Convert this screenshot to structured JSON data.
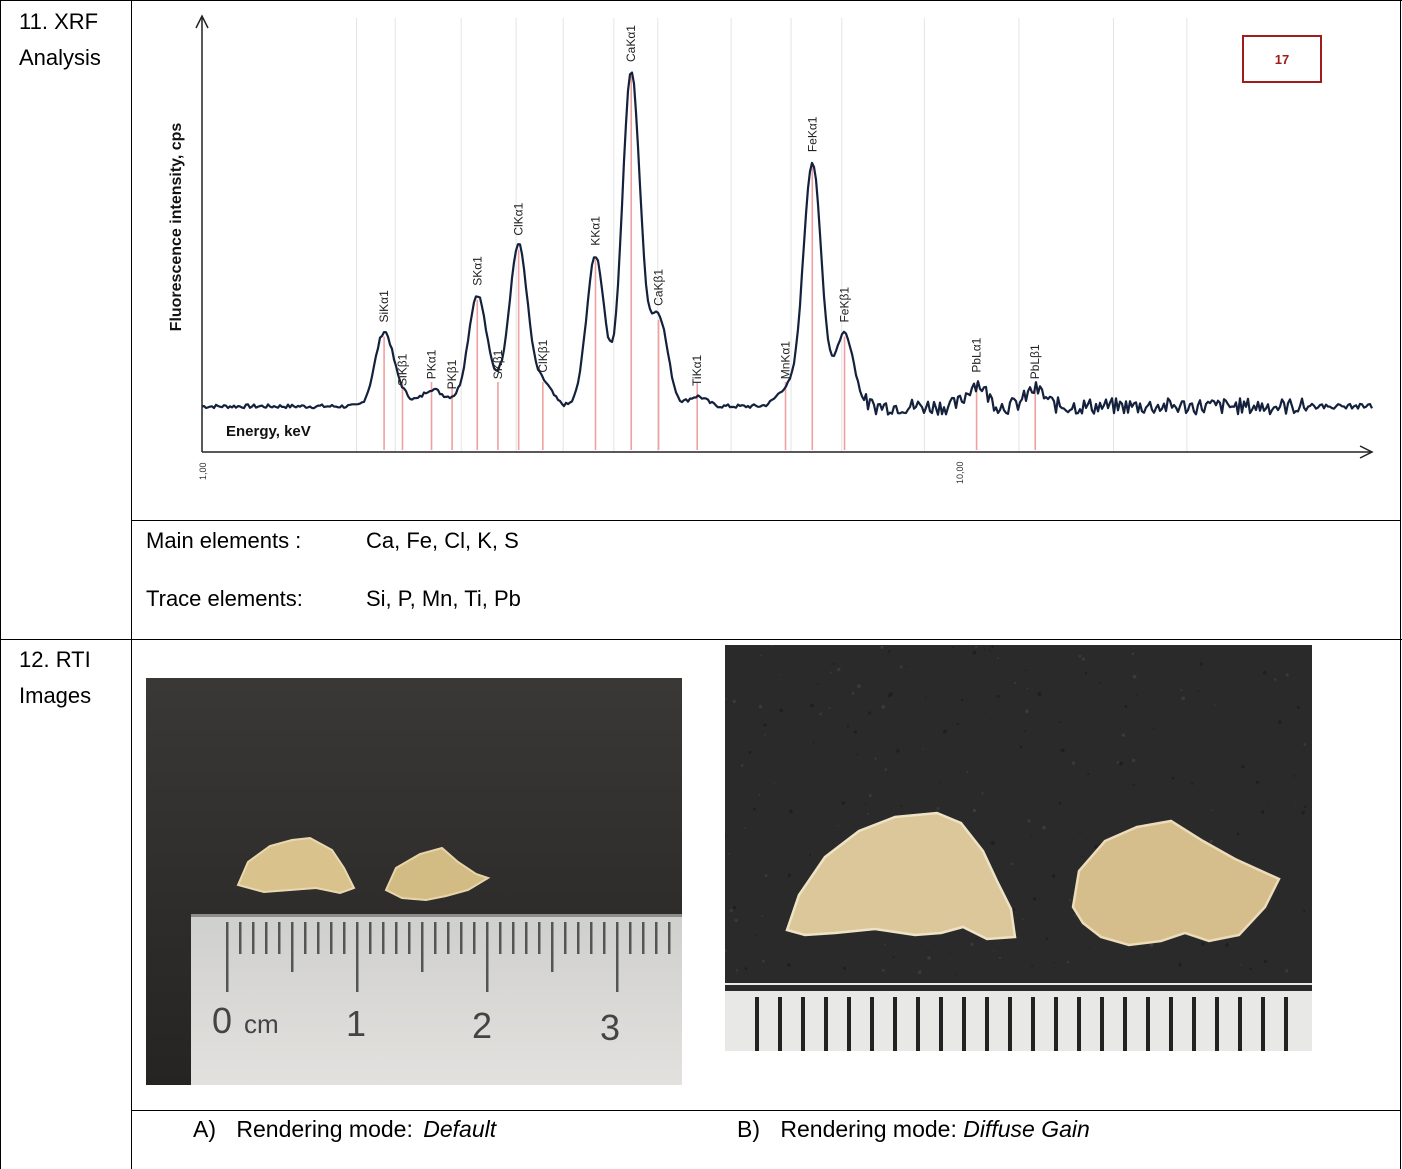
{
  "sections": {
    "xrf_label": [
      "11. XRF",
      "Analysis"
    ],
    "rti_label": [
      "12. RTI",
      "Images"
    ]
  },
  "elements": {
    "main_label": "Main elements :",
    "main_value": "Ca, Fe, Cl, K, S",
    "trace_label": "Trace elements:",
    "trace_value": "Si, P, Mn, Ti, Pb"
  },
  "captions": {
    "a_prefix": "A)",
    "a_text": "Rendering  mode:",
    "a_mode": "Default",
    "b_prefix": "B)",
    "b_text": "Rendering mode:",
    "b_mode": "Diffuse Gain"
  },
  "chart_data": {
    "type": "line",
    "ylabel": "Fluorescence intensity, cps",
    "xlabel": "Energy, keV",
    "x_scale": "log",
    "x_ticks": [
      "1,00",
      "10,00"
    ],
    "sample_number": "17",
    "peaks": [
      {
        "label": "SiKα1",
        "energy": 1.74,
        "height": 0.22
      },
      {
        "label": "SiKβ1",
        "energy": 1.84,
        "height": 0.03
      },
      {
        "label": "PKα1",
        "energy": 2.01,
        "height": 0.05
      },
      {
        "label": "PKβ1",
        "energy": 2.14,
        "height": 0.02
      },
      {
        "label": "SKα1",
        "energy": 2.31,
        "height": 0.33
      },
      {
        "label": "SKβ1",
        "energy": 2.46,
        "height": 0.05
      },
      {
        "label": "ClKα1",
        "energy": 2.62,
        "height": 0.48
      },
      {
        "label": "ClKβ1",
        "energy": 2.82,
        "height": 0.07
      },
      {
        "label": "KKα1",
        "energy": 3.31,
        "height": 0.45
      },
      {
        "label": "CaKα1",
        "energy": 3.69,
        "height": 1.0
      },
      {
        "label": "CaKβ1",
        "energy": 4.01,
        "height": 0.27
      },
      {
        "label": "TiKα1",
        "energy": 4.51,
        "height": 0.03
      },
      {
        "label": "MnKα1",
        "energy": 5.9,
        "height": 0.05
      },
      {
        "label": "FeKα1",
        "energy": 6.4,
        "height": 0.73
      },
      {
        "label": "FeKβ1",
        "energy": 7.06,
        "height": 0.22
      },
      {
        "label": "PbLα1",
        "energy": 10.55,
        "height": 0.07
      },
      {
        "label": "PbLβ1",
        "energy": 12.61,
        "height": 0.05
      }
    ]
  },
  "ruler_a": {
    "labels": [
      "0",
      "cm",
      "1",
      "2",
      "3"
    ]
  },
  "colors": {
    "spectrum": "#14213d",
    "marker": "#f0a0a0",
    "badge": "#a01c1c",
    "photo_bg": "#2b2b2b",
    "fragment": "#d8c08a"
  }
}
